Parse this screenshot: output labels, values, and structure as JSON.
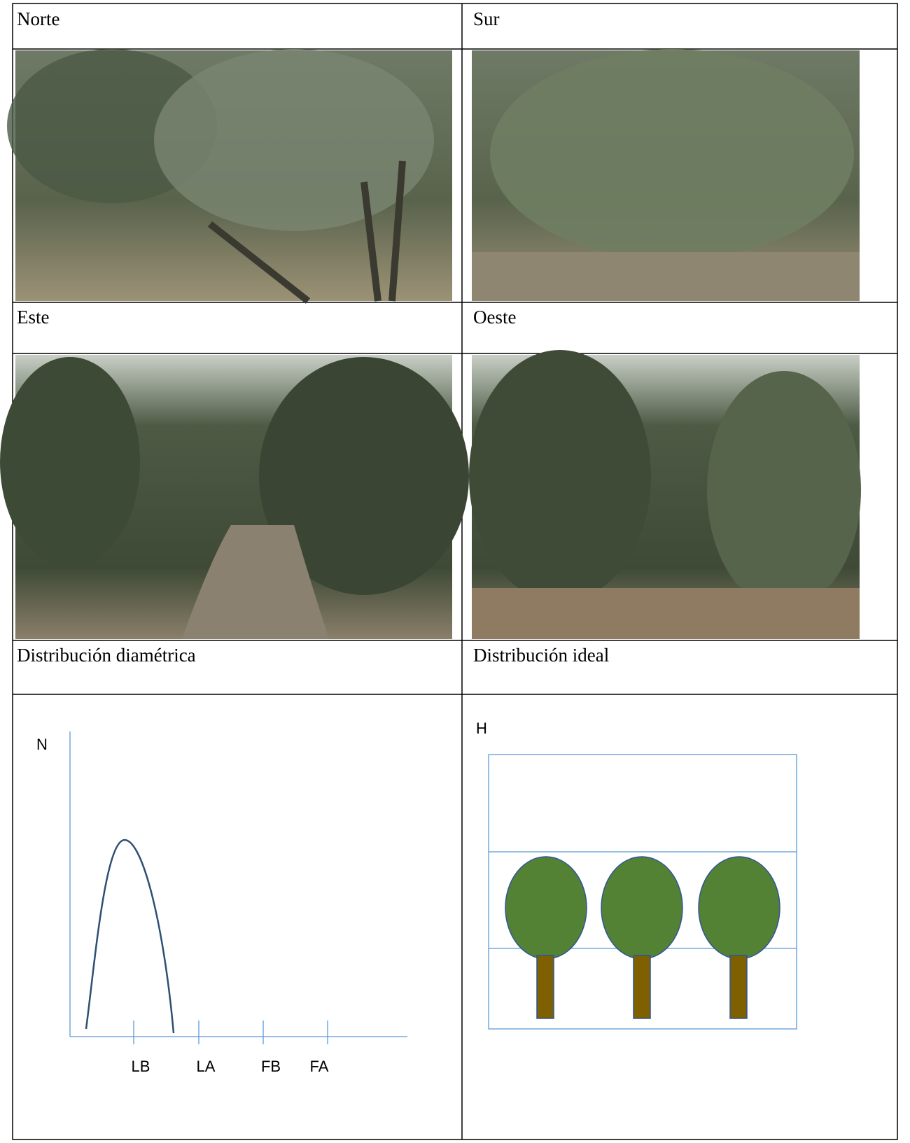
{
  "table": {
    "rows": [
      [
        "Norte",
        "Sur"
      ],
      [
        "Este",
        "Oeste"
      ],
      [
        "Distribución diamétrica",
        "Distribución ideal"
      ]
    ]
  },
  "diagram_left": {
    "y_label": "N",
    "x_labels": [
      "LB",
      "LA",
      "FB",
      "FA"
    ]
  },
  "diagram_right": {
    "y_label": "H"
  }
}
